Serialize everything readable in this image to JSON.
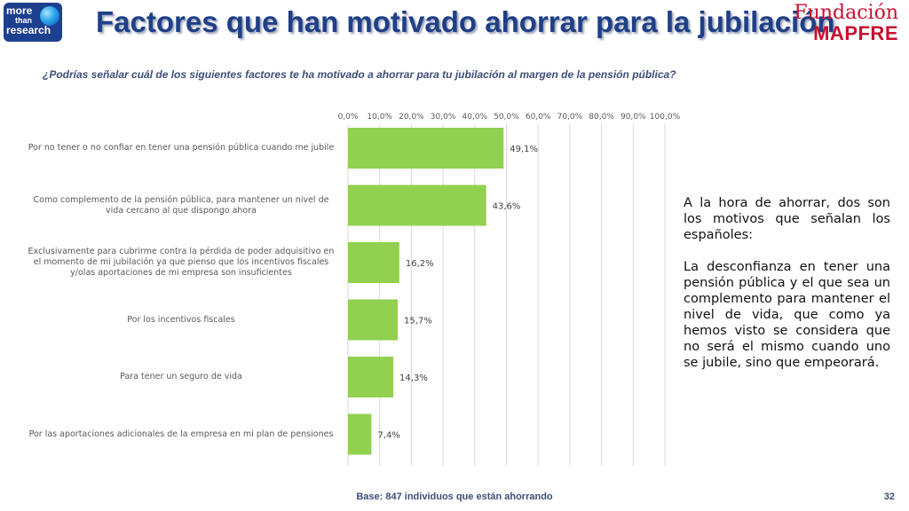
{
  "header": {
    "logo_line1": "more",
    "logo_line2": "than",
    "logo_line3": "research",
    "title": "Factores que han motivado ahorrar para la jubilación",
    "brand_line1": "Fundación",
    "brand_line2": "MAPFRE"
  },
  "question": "¿Podrías señalar cuál de los siguientes factores te ha motivado a ahorrar para tu jubilación al margen de la pensión pública?",
  "chart_data": {
    "type": "bar",
    "orientation": "horizontal",
    "categories": [
      "Por no tener o no confiar en tener una pensión pública cuando me jubile",
      "Como complemento de la pensión pública, para mantener un nivel de vida cercano al que dispongo ahora",
      "Exclusivamente para cubrirme contra la pérdida de poder adquisitivo en el momento de mi jubilación ya que pienso que los incentivos fiscales y/olas aportaciones de mi empresa son insuficientes",
      "Por los incentivos fiscales",
      "Para tener un seguro de vida",
      "Por las aportaciones adicionales de la empresa en mi plan de pensiones"
    ],
    "category_lines": [
      [
        "Por no tener o no confiar en tener una pensión pública cuando me jubile"
      ],
      [
        "Como complemento de la pensión pública, para mantener un nivel de",
        "vida cercano al que dispongo ahora"
      ],
      [
        "Exclusivamente para cubrirme contra la pérdida de poder adquisitivo en",
        "el momento de mi jubilación ya que pienso que los incentivos fiscales",
        "y/olas aportaciones de mi empresa son insuficientes"
      ],
      [
        "Por los incentivos fiscales"
      ],
      [
        "Para tener un seguro de vida"
      ],
      [
        "Por las aportaciones adicionales de la empresa en mi plan de pensiones"
      ]
    ],
    "values": [
      49.1,
      43.6,
      16.2,
      15.7,
      14.3,
      7.4
    ],
    "value_labels": [
      "49,1%",
      "43,6%",
      "16,2%",
      "15,7%",
      "14,3%",
      "7,4%"
    ],
    "xlim": [
      0,
      100
    ],
    "ticks": [
      0,
      10,
      20,
      30,
      40,
      50,
      60,
      70,
      80,
      90,
      100
    ],
    "tick_labels": [
      "0,0%",
      "10,0%",
      "20,0%",
      "30,0%",
      "40,0%",
      "50,0%",
      "60,0%",
      "70,0%",
      "80,0%",
      "90,0%",
      "100,0%"
    ],
    "axis_position": "top",
    "grid": true,
    "bar_color": "#92d050"
  },
  "side_text": {
    "paragraph1": "A la hora de ahorrar, dos son los motivos que señalan los españoles:",
    "paragraph2": "La desconfianza en tener una pensión pública y el que sea un complemento para mantener el nivel de vida, que como ya hemos visto se considera que no será el mismo cuando uno se jubile, sino que empeorará."
  },
  "footer": {
    "base": "Base: 847 individuos que están ahorrando",
    "page": "32"
  }
}
